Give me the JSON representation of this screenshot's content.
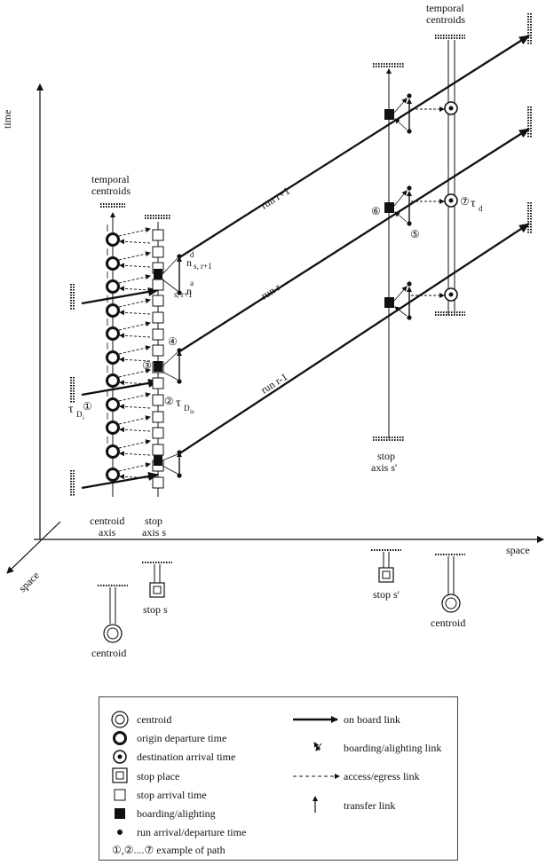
{
  "axes": {
    "time": "time",
    "space_x": "space",
    "space_z": "space"
  },
  "labels": {
    "temporal_centroids_left": [
      "temporal",
      "centroids"
    ],
    "temporal_centroids_right": [
      "temporal",
      "centroids"
    ],
    "centroid_axis": [
      "centroid",
      "axis"
    ],
    "stop_axis_s": [
      "stop",
      "axis s"
    ],
    "stop_axis_s_prime": [
      "stop",
      "axis s'"
    ],
    "stop_s": "stop s",
    "stop_s_prime": "stop s'",
    "centroid_left": "centroid",
    "centroid_right": "centroid",
    "run_top": "run r+1",
    "run_mid": "run r",
    "run_bot": "run r-1",
    "n_d": "n",
    "n_d_sup": "d",
    "n_d_sub": "s, r+1",
    "n_a": "n",
    "n_a_sup": "a",
    "n_a_sub": "s, r+1",
    "tau_D_i": "τ",
    "tau_D_i_sub": "D",
    "tau_D_i_subsub": "i",
    "tau_D_is": "τ",
    "tau_D_is_sub": "D",
    "tau_D_is_subsub": "is",
    "tau_d": "τ",
    "tau_d_sub": "d",
    "path_markers": [
      "①",
      "②",
      "③",
      "④",
      "⑤",
      "⑥",
      "⑦"
    ]
  },
  "legend": {
    "left": [
      {
        "icon": "centroid-symbol",
        "label": "centroid"
      },
      {
        "icon": "origin-departure-symbol",
        "label": "origin departure time"
      },
      {
        "icon": "destination-arrival-symbol",
        "label": "destination arrival time"
      },
      {
        "icon": "stop-place-symbol",
        "label": "stop place"
      },
      {
        "icon": "stop-arrival-symbol",
        "label": "stop arrival time"
      },
      {
        "icon": "boarding-alighting-symbol",
        "label": "boarding/alighting"
      },
      {
        "icon": "run-arrival-departure-symbol",
        "label": "run arrival/departure time"
      },
      {
        "icon": "path-example-symbol",
        "label": "①,②....⑦  example of path"
      }
    ],
    "right": [
      {
        "icon": "on-board-link-symbol",
        "label": "on board link"
      },
      {
        "icon": "boarding-alighting-link-symbol",
        "label": "boarding/alighting link"
      },
      {
        "icon": "access-egress-link-symbol",
        "label": "access/egress link"
      },
      {
        "icon": "transfer-link-symbol",
        "label": "transfer link"
      }
    ]
  },
  "colors": {
    "ink": "#111111",
    "background": "#ffffff"
  }
}
